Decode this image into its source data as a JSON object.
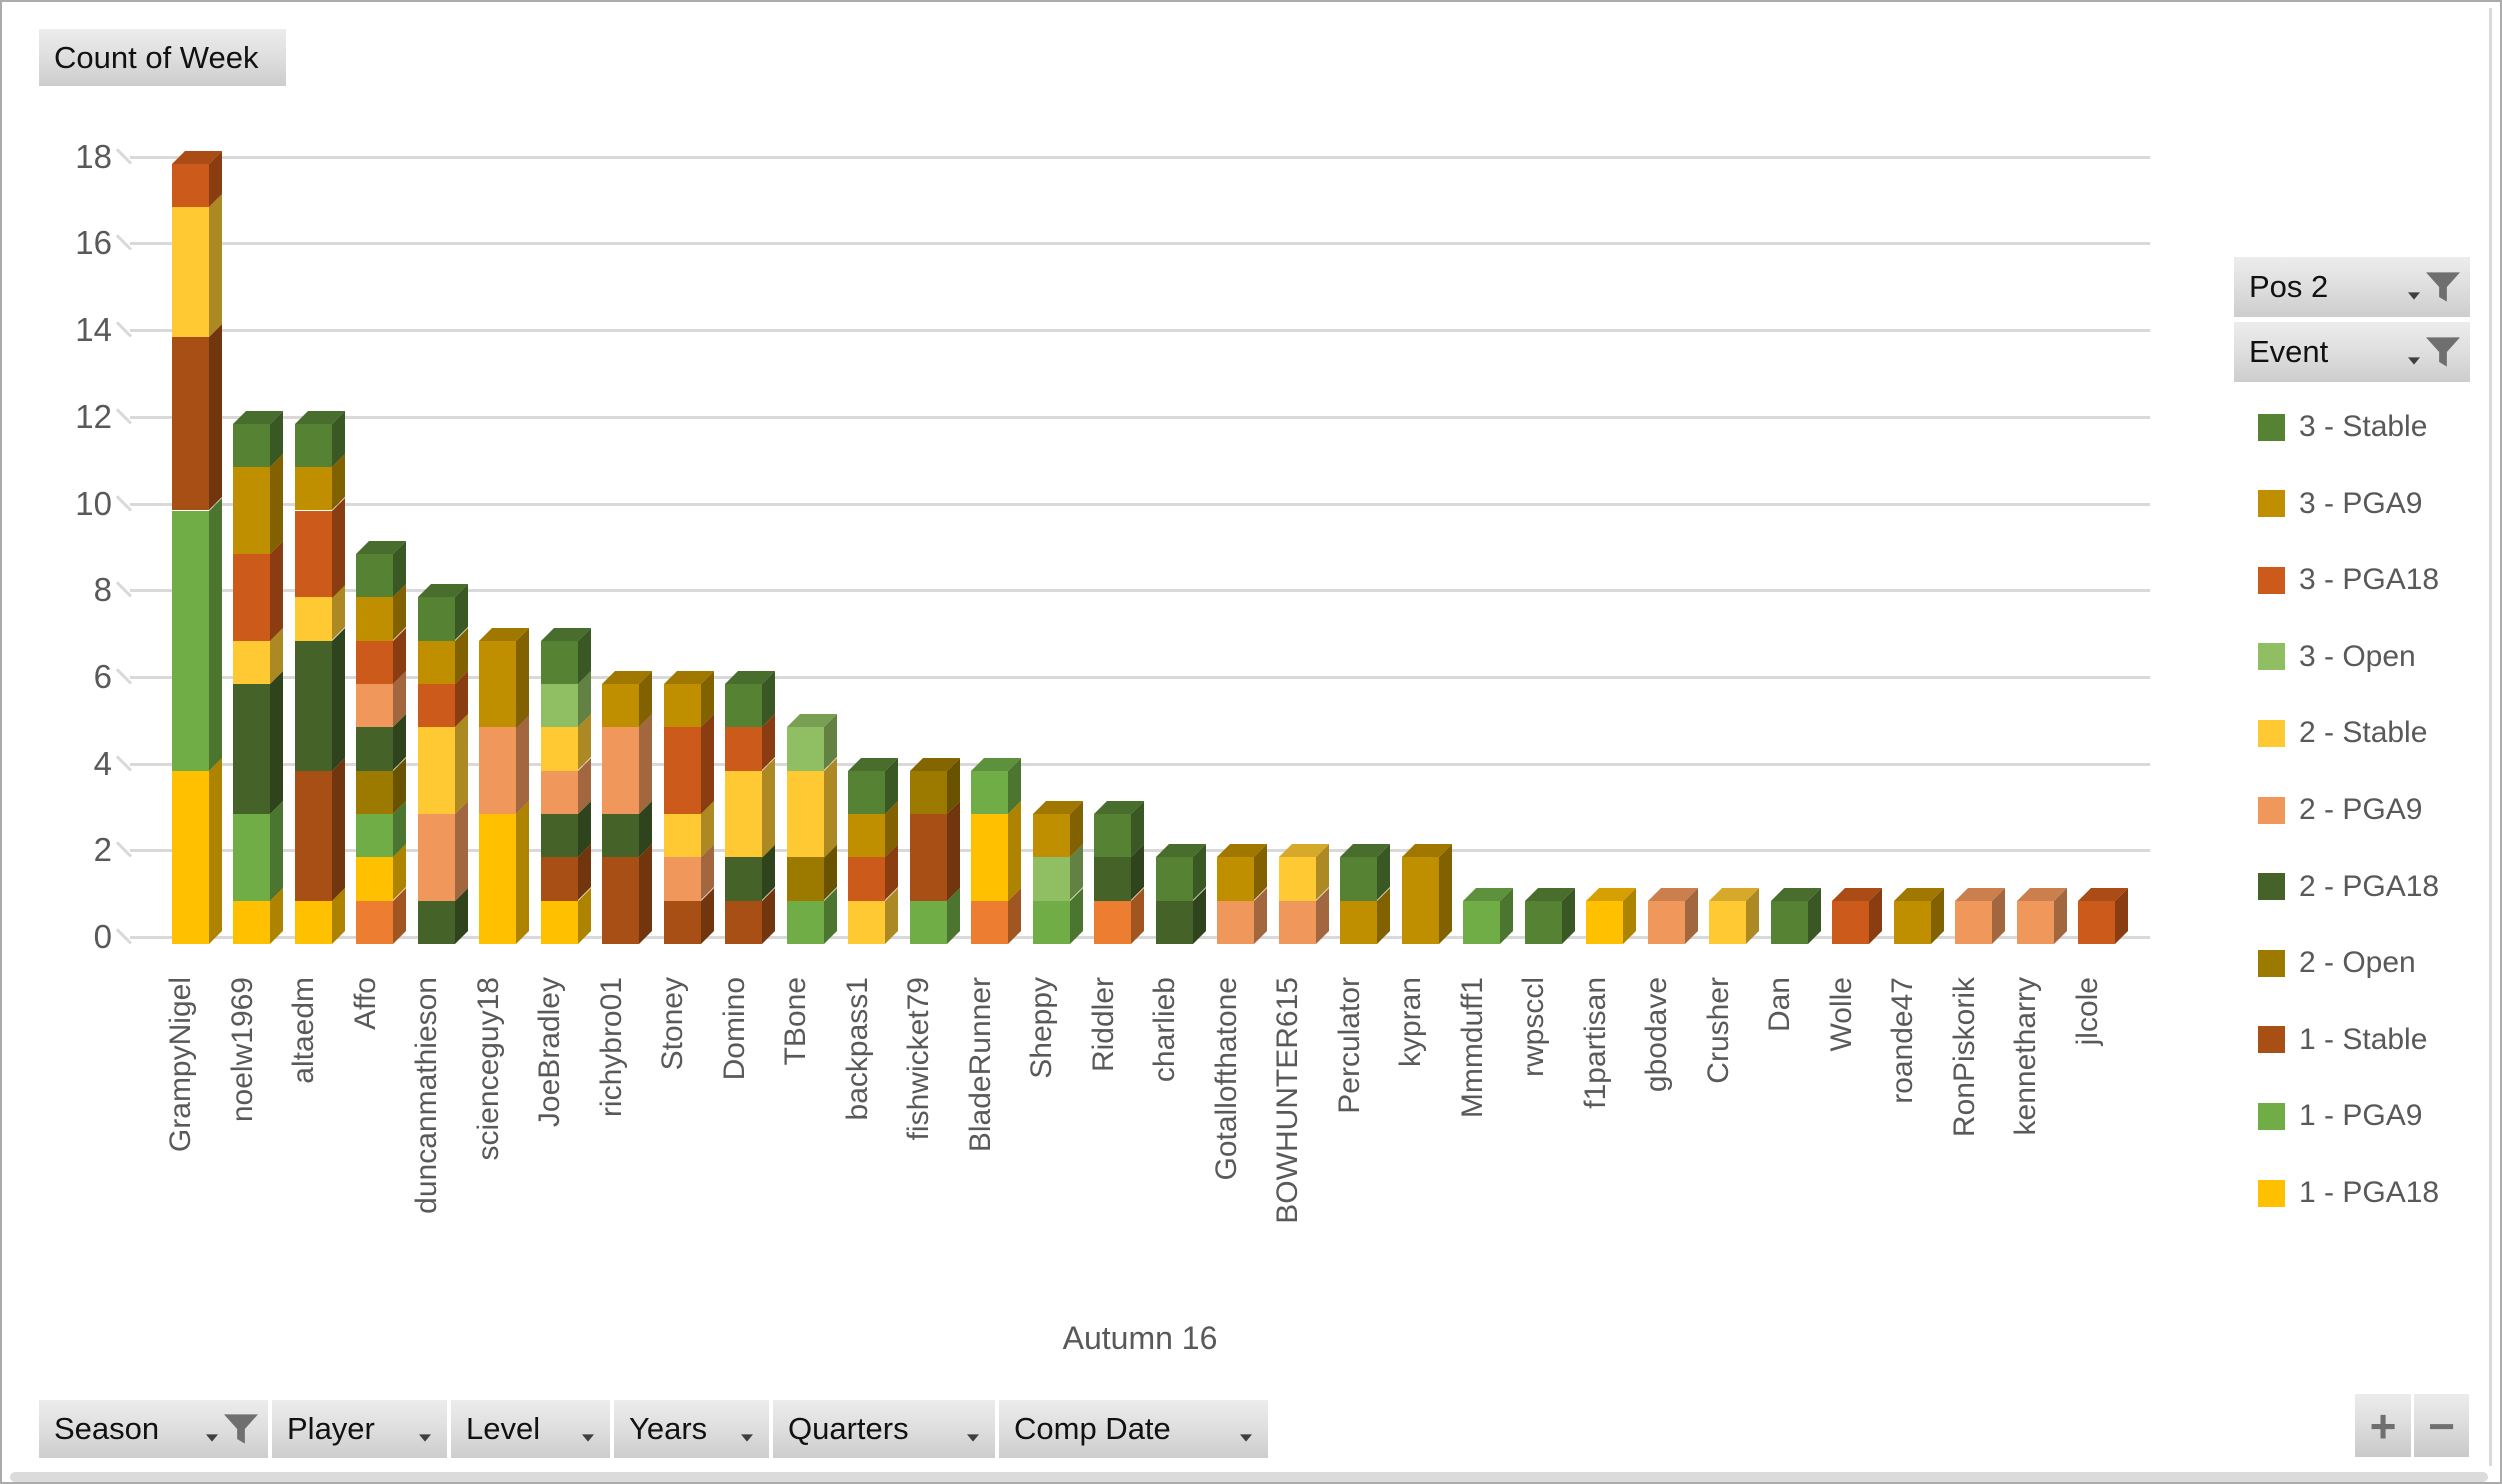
{
  "value_button": {
    "label": "Count of Week"
  },
  "column_field_buttons": {
    "pos": {
      "label": "Pos 2",
      "filtered": true
    },
    "event": {
      "label": "Event",
      "filtered": true
    }
  },
  "axis_field_buttons": [
    {
      "label": "Season",
      "filtered": true
    },
    {
      "label": "Player",
      "filtered": false
    },
    {
      "label": "Level",
      "filtered": false
    },
    {
      "label": "Years",
      "filtered": false
    },
    {
      "label": "Quarters",
      "filtered": false
    },
    {
      "label": "Comp Date",
      "filtered": false
    }
  ],
  "zoom_buttons": {
    "plus": "+",
    "minus": "−"
  },
  "chart_data": {
    "type": "bar",
    "variant": "3d-stacked-column",
    "title": "Count of Week",
    "xlabel": "Autumn 16",
    "ylabel": "",
    "ylim": [
      0,
      18
    ],
    "ytick_step": 2,
    "grid": true,
    "legend_position": "right",
    "legend": [
      {
        "name": "3 - Stable",
        "color": "#568234"
      },
      {
        "name": "3 - PGA9",
        "color": "#BF8F00"
      },
      {
        "name": "3 - PGA18",
        "color": "#CC5A1A"
      },
      {
        "name": "3 - Open",
        "color": "#90BE62"
      },
      {
        "name": "2 - Stable",
        "color": "#FFC933"
      },
      {
        "name": "2 - PGA9",
        "color": "#F0975C"
      },
      {
        "name": "2 - PGA18",
        "color": "#456229"
      },
      {
        "name": "2 - Open",
        "color": "#9C7A00"
      },
      {
        "name": "1 - Stable",
        "color": "#A84F15"
      },
      {
        "name": "1 - PGA9",
        "color": "#70AD47"
      },
      {
        "name": "1 - PGA18",
        "color": "#FFC000"
      }
    ],
    "unlisted_series_colors": {
      "1 - Open": "#ED7D31"
    },
    "categories": [
      "GrampyNigel",
      "noelw1969",
      "altaedm",
      "Affo",
      "duncanmathieson",
      "scienceguy18",
      "JoeBradley",
      "richybro01",
      "Stoney",
      "Domino",
      "TBone",
      "backpass1",
      "fishwicket79",
      "BladeRunner",
      "Sheppy",
      "Riddler",
      "charlieb",
      "Gotallofthatone",
      "BOWHUNTER615",
      "Perculator",
      "kypran",
      "Mmmduff1",
      "rwpsccl",
      "f1partisan",
      "gbodave",
      "Crusher",
      "Dan",
      "Wolle",
      "roande47",
      "RonPiskorik",
      "kennetharry",
      "jlcole"
    ],
    "bars": [
      {
        "player": "GrampyNigel",
        "total": 18,
        "segments": [
          {
            "series": "1 - PGA18",
            "value": 4
          },
          {
            "series": "1 - PGA9",
            "value": 6
          },
          {
            "series": "1 - Stable",
            "value": 4
          },
          {
            "series": "2 - Stable",
            "value": 3
          },
          {
            "series": "3 - PGA18",
            "value": 1
          }
        ]
      },
      {
        "player": "noelw1969",
        "total": 12,
        "segments": [
          {
            "series": "1 - PGA18",
            "value": 1
          },
          {
            "series": "1 - PGA9",
            "value": 2
          },
          {
            "series": "2 - PGA18",
            "value": 3
          },
          {
            "series": "2 - Stable",
            "value": 1
          },
          {
            "series": "3 - PGA18",
            "value": 2
          },
          {
            "series": "3 - PGA9",
            "value": 2
          },
          {
            "series": "3 - Stable",
            "value": 1
          }
        ]
      },
      {
        "player": "altaedm",
        "total": 12,
        "segments": [
          {
            "series": "1 - PGA18",
            "value": 1
          },
          {
            "series": "1 - Stable",
            "value": 3
          },
          {
            "series": "2 - PGA18",
            "value": 3
          },
          {
            "series": "2 - Stable",
            "value": 1
          },
          {
            "series": "3 - PGA18",
            "value": 2
          },
          {
            "series": "3 - PGA9",
            "value": 1
          },
          {
            "series": "3 - Stable",
            "value": 1
          }
        ]
      },
      {
        "player": "Affo",
        "total": 9,
        "segments": [
          {
            "series": "1 - Open",
            "value": 1
          },
          {
            "series": "1 - PGA18",
            "value": 1
          },
          {
            "series": "1 - PGA9",
            "value": 1
          },
          {
            "series": "2 - Open",
            "value": 1
          },
          {
            "series": "2 - PGA18",
            "value": 1
          },
          {
            "series": "2 - PGA9",
            "value": 1
          },
          {
            "series": "3 - PGA18",
            "value": 1
          },
          {
            "series": "3 - PGA9",
            "value": 1
          },
          {
            "series": "3 - Stable",
            "value": 1
          }
        ]
      },
      {
        "player": "duncanmathieson",
        "total": 8,
        "segments": [
          {
            "series": "2 - PGA18",
            "value": 1
          },
          {
            "series": "2 - PGA9",
            "value": 2
          },
          {
            "series": "2 - Stable",
            "value": 2
          },
          {
            "series": "3 - PGA18",
            "value": 1
          },
          {
            "series": "3 - PGA9",
            "value": 1
          },
          {
            "series": "3 - Stable",
            "value": 1
          }
        ]
      },
      {
        "player": "scienceguy18",
        "total": 7,
        "segments": [
          {
            "series": "1 - PGA18",
            "value": 3
          },
          {
            "series": "2 - PGA9",
            "value": 2
          },
          {
            "series": "3 - PGA9",
            "value": 2
          }
        ]
      },
      {
        "player": "JoeBradley",
        "total": 7,
        "segments": [
          {
            "series": "1 - PGA18",
            "value": 1
          },
          {
            "series": "1 - Stable",
            "value": 1
          },
          {
            "series": "2 - PGA18",
            "value": 1
          },
          {
            "series": "2 - PGA9",
            "value": 1
          },
          {
            "series": "2 - Stable",
            "value": 1
          },
          {
            "series": "3 - Open",
            "value": 1
          },
          {
            "series": "3 - Stable",
            "value": 1
          }
        ]
      },
      {
        "player": "richybro01",
        "total": 6,
        "segments": [
          {
            "series": "1 - Stable",
            "value": 2
          },
          {
            "series": "2 - PGA18",
            "value": 1
          },
          {
            "series": "2 - PGA9",
            "value": 2
          },
          {
            "series": "3 - PGA9",
            "value": 1
          }
        ]
      },
      {
        "player": "Stoney",
        "total": 6,
        "segments": [
          {
            "series": "1 - Stable",
            "value": 1
          },
          {
            "series": "2 - PGA9",
            "value": 1
          },
          {
            "series": "2 - Stable",
            "value": 1
          },
          {
            "series": "3 - PGA18",
            "value": 2
          },
          {
            "series": "3 - PGA9",
            "value": 1
          }
        ]
      },
      {
        "player": "Domino",
        "total": 6,
        "segments": [
          {
            "series": "1 - Stable",
            "value": 1
          },
          {
            "series": "2 - PGA18",
            "value": 1
          },
          {
            "series": "2 - Stable",
            "value": 2
          },
          {
            "series": "3 - PGA18",
            "value": 1
          },
          {
            "series": "3 - Stable",
            "value": 1
          }
        ]
      },
      {
        "player": "TBone",
        "total": 5,
        "segments": [
          {
            "series": "1 - PGA9",
            "value": 1
          },
          {
            "series": "2 - Open",
            "value": 1
          },
          {
            "series": "2 - Stable",
            "value": 2
          },
          {
            "series": "3 - Open",
            "value": 1
          }
        ]
      },
      {
        "player": "backpass1",
        "total": 4,
        "segments": [
          {
            "series": "2 - Stable",
            "value": 1
          },
          {
            "series": "3 - PGA18",
            "value": 1
          },
          {
            "series": "3 - PGA9",
            "value": 1
          },
          {
            "series": "3 - Stable",
            "value": 1
          }
        ]
      },
      {
        "player": "fishwicket79",
        "total": 4,
        "segments": [
          {
            "series": "1 - PGA9",
            "value": 1
          },
          {
            "series": "1 - Stable",
            "value": 2
          },
          {
            "series": "2 - Open",
            "value": 1
          }
        ]
      },
      {
        "player": "BladeRunner",
        "total": 4,
        "segments": [
          {
            "series": "1 - Open",
            "value": 1
          },
          {
            "series": "1 - PGA18",
            "value": 2
          },
          {
            "series": "1 - PGA9",
            "value": 1
          }
        ]
      },
      {
        "player": "Sheppy",
        "total": 3,
        "segments": [
          {
            "series": "1 - PGA9",
            "value": 1
          },
          {
            "series": "3 - Open",
            "value": 1
          },
          {
            "series": "3 - PGA9",
            "value": 1
          }
        ]
      },
      {
        "player": "Riddler",
        "total": 3,
        "segments": [
          {
            "series": "1 - Open",
            "value": 1
          },
          {
            "series": "2 - PGA18",
            "value": 1
          },
          {
            "series": "3 - Stable",
            "value": 1
          }
        ]
      },
      {
        "player": "charlieb",
        "total": 2,
        "segments": [
          {
            "series": "2 - PGA18",
            "value": 1
          },
          {
            "series": "3 - Stable",
            "value": 1
          }
        ]
      },
      {
        "player": "Gotallofthatone",
        "total": 2,
        "segments": [
          {
            "series": "2 - PGA9",
            "value": 1
          },
          {
            "series": "3 - PGA9",
            "value": 1
          }
        ]
      },
      {
        "player": "BOWHUNTER615",
        "total": 2,
        "segments": [
          {
            "series": "2 - PGA9",
            "value": 1
          },
          {
            "series": "2 - Stable",
            "value": 1
          }
        ]
      },
      {
        "player": "Perculator",
        "total": 2,
        "segments": [
          {
            "series": "3 - PGA9",
            "value": 1
          },
          {
            "series": "3 - Stable",
            "value": 1
          }
        ]
      },
      {
        "player": "kypran",
        "total": 2,
        "segments": [
          {
            "series": "3 - PGA9",
            "value": 2
          }
        ]
      },
      {
        "player": "Mmmduff1",
        "total": 1,
        "segments": [
          {
            "series": "1 - PGA9",
            "value": 1
          }
        ]
      },
      {
        "player": "rwpsccl",
        "total": 1,
        "segments": [
          {
            "series": "3 - Stable",
            "value": 1
          }
        ]
      },
      {
        "player": "f1partisan",
        "total": 1,
        "segments": [
          {
            "series": "1 - PGA18",
            "value": 1
          }
        ]
      },
      {
        "player": "gbodave",
        "total": 1,
        "segments": [
          {
            "series": "2 - PGA9",
            "value": 1
          }
        ]
      },
      {
        "player": "Crusher",
        "total": 1,
        "segments": [
          {
            "series": "2 - Stable",
            "value": 1
          }
        ]
      },
      {
        "player": "Dan",
        "total": 1,
        "segments": [
          {
            "series": "3 - Stable",
            "value": 1
          }
        ]
      },
      {
        "player": "Wolle",
        "total": 1,
        "segments": [
          {
            "series": "3 - PGA18",
            "value": 1
          }
        ]
      },
      {
        "player": "roande47",
        "total": 1,
        "segments": [
          {
            "series": "3 - PGA9",
            "value": 1
          }
        ]
      },
      {
        "player": "RonPiskorik",
        "total": 1,
        "segments": [
          {
            "series": "2 - PGA9",
            "value": 1
          }
        ]
      },
      {
        "player": "kennetharry",
        "total": 1,
        "segments": [
          {
            "series": "2 - PGA9",
            "value": 1
          }
        ]
      },
      {
        "player": "jlcole",
        "total": 1,
        "segments": [
          {
            "series": "3 - PGA18",
            "value": 1
          }
        ]
      }
    ]
  }
}
